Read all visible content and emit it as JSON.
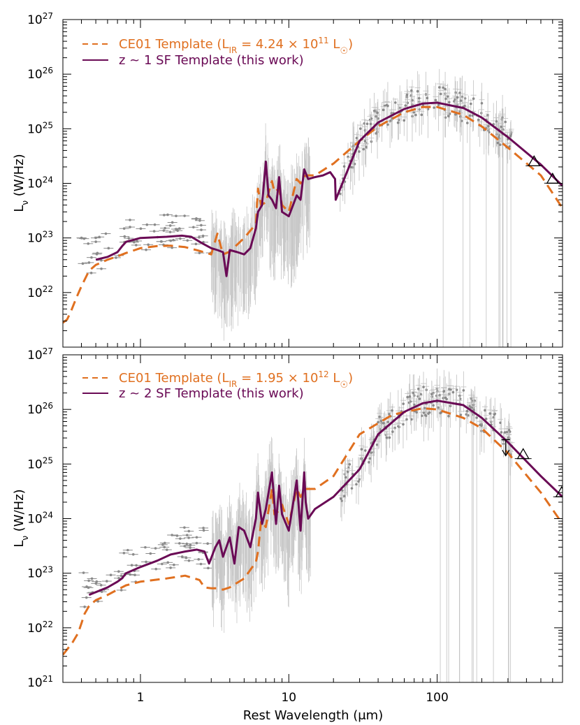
{
  "chart_data": [
    {
      "type": "line",
      "panel": "top",
      "xlabel": "",
      "ylabel": "L_ν (W/Hz)",
      "ylabel_main": "L",
      "ylabel_sub": "ν",
      "ylabel_unit": " (W/Hz)",
      "x_scale": "log",
      "y_scale": "log",
      "xlim": [
        0.3,
        700
      ],
      "ylim": [
        1e+21,
        1e+27
      ],
      "x_ticks": [
        1,
        10,
        100
      ],
      "y_ticks": [
        {
          "mantissa": "10",
          "exp": "27"
        },
        {
          "mantissa": "10",
          "exp": "26"
        },
        {
          "mantissa": "10",
          "exp": "25"
        },
        {
          "mantissa": "10",
          "exp": "24"
        },
        {
          "mantissa": "10",
          "exp": "23"
        },
        {
          "mantissa": "10",
          "exp": "22"
        }
      ],
      "legend": [
        {
          "label_pre": "CE01 Template (L",
          "label_sub": "IR",
          "label_mid": " = 4.24 × 10",
          "label_sup": "11",
          "label_post": " L",
          "label_sun": "☉",
          "label_end": ")",
          "style": "dashed",
          "color": "#e07020"
        },
        {
          "label": "z ~ 1 SF Template (this work)",
          "style": "solid",
          "color": "#6a0a55"
        }
      ],
      "series": [
        {
          "name": "CE01 Template",
          "style": "dashed",
          "color": "#e07020",
          "x": [
            0.3,
            0.32,
            0.34,
            0.37,
            0.4,
            0.45,
            0.5,
            0.6,
            0.7,
            0.8,
            1.0,
            1.3,
            1.6,
            2.0,
            2.5,
            3.0,
            3.3,
            3.6,
            4.0,
            5.0,
            6.0,
            6.2,
            6.5,
            7.0,
            7.7,
            8.0,
            8.6,
            9.0,
            10.0,
            11.3,
            12.0,
            13.0,
            15.0,
            20.0,
            30.0,
            40.0,
            60.0,
            80.0,
            100.0,
            150.0,
            200.0,
            300.0,
            500.0,
            700.0
          ],
          "y": [
            2.8e+21,
            3.2e+21,
            4.5e+21,
            8e+21,
            1.3e+22,
            2.5e+22,
            3.2e+22,
            4e+22,
            4.6e+22,
            5.3e+22,
            6.5e+22,
            7.1e+22,
            7.2e+22,
            6.8e+22,
            5.8e+22,
            5e+22,
            1.2e+23,
            5e+22,
            5.6e+22,
            1e+23,
            1.8e+23,
            8e+23,
            4e+23,
            4.5e+23,
            1.1e+24,
            7e+23,
            8e+23,
            4e+23,
            3e+23,
            1.2e+24,
            1e+24,
            1.4e+24,
            1.4e+24,
            2.3e+24,
            6e+24,
            1.1e+25,
            2e+25,
            2.5e+25,
            2.5e+25,
            1.8e+25,
            1.1e+25,
            4.5e+24,
            1.4e+24,
            3.5e+23
          ]
        },
        {
          "name": "z ~ 1 SF Template",
          "style": "solid",
          "color": "#6a0a55",
          "x": [
            0.5,
            0.6,
            0.7,
            0.75,
            0.8,
            1.0,
            1.5,
            1.9,
            2.2,
            2.6,
            3.0,
            3.3,
            3.6,
            3.8,
            4.0,
            4.5,
            5.0,
            5.5,
            6.0,
            6.2,
            6.6,
            7.0,
            7.3,
            7.7,
            8.2,
            8.6,
            9.0,
            10.0,
            11.3,
            12.0,
            12.7,
            13.5,
            15.0,
            17.0,
            19.0,
            20.5,
            20.7,
            30.0,
            40.0,
            60.0,
            80.0,
            100.0,
            150.0,
            200.0,
            300.0,
            500.0,
            700.0
          ],
          "y": [
            4e+22,
            4.5e+22,
            5.5e+22,
            7e+22,
            8.5e+22,
            1e+23,
            1.05e+23,
            1.1e+23,
            1.05e+23,
            8e+22,
            6.5e+22,
            6e+22,
            5.5e+22,
            2e+22,
            6e+22,
            5.5e+22,
            5e+22,
            6.5e+22,
            1.5e+23,
            3e+23,
            4e+23,
            2.5e+24,
            6e+23,
            5e+23,
            3.5e+23,
            1.3e+24,
            3e+23,
            2.5e+23,
            6e+23,
            5e+23,
            1.8e+24,
            1.2e+24,
            1.3e+24,
            1.4e+24,
            1.6e+24,
            1.2e+24,
            5e+23,
            6e+24,
            1.3e+25,
            2.3e+25,
            2.9e+25,
            3e+25,
            2.4e+25,
            1.6e+25,
            7e+24,
            2.2e+24,
            9e+23
          ]
        }
      ],
      "arrow_markers": [],
      "triangle_markers": [
        {
          "x": 450,
          "y": 2.5e+24
        },
        {
          "x": 600,
          "y": 1.2e+24
        }
      ]
    },
    {
      "type": "line",
      "panel": "bottom",
      "xlabel": "Rest Wavelength (μm)",
      "ylabel": "L_ν (W/Hz)",
      "ylabel_main": "L",
      "ylabel_sub": "ν",
      "ylabel_unit": " (W/Hz)",
      "x_scale": "log",
      "y_scale": "log",
      "xlim": [
        0.3,
        700
      ],
      "ylim": [
        1e+21,
        1e+27
      ],
      "x_ticks": [
        1,
        10,
        100
      ],
      "y_ticks": [
        {
          "mantissa": "10",
          "exp": "27"
        },
        {
          "mantissa": "10",
          "exp": "26"
        },
        {
          "mantissa": "10",
          "exp": "25"
        },
        {
          "mantissa": "10",
          "exp": "24"
        },
        {
          "mantissa": "10",
          "exp": "23"
        },
        {
          "mantissa": "10",
          "exp": "22"
        },
        {
          "mantissa": "10",
          "exp": "21"
        }
      ],
      "legend": [
        {
          "label_pre": "CE01 Template (L",
          "label_sub": "IR",
          "label_mid": " = 1.95 × 10",
          "label_sup": "12",
          "label_post": " L",
          "label_sun": "☉",
          "label_end": ")",
          "style": "dashed",
          "color": "#e07020"
        },
        {
          "label": "z ~ 2 SF Template (this work)",
          "style": "solid",
          "color": "#6a0a55"
        }
      ],
      "series": [
        {
          "name": "CE01 Template",
          "style": "dashed",
          "color": "#e07020",
          "x": [
            0.3,
            0.32,
            0.35,
            0.38,
            0.4,
            0.42,
            0.45,
            0.5,
            0.6,
            0.7,
            0.8,
            1.0,
            1.5,
            2.0,
            2.5,
            2.7,
            3.0,
            3.3,
            3.6,
            4.0,
            5.0,
            6.0,
            6.2,
            6.5,
            7.0,
            7.7,
            8.0,
            8.6,
            9.0,
            10.0,
            11.3,
            12.0,
            13.0,
            15.0,
            20.0,
            30.0,
            50.0,
            80.0,
            100.0,
            150.0,
            200.0,
            300.0,
            500.0,
            700.0
          ],
          "y": [
            3.2e+21,
            4e+21,
            5.5e+21,
            8e+21,
            1.2e+22,
            1.8e+22,
            2.5e+22,
            3.2e+22,
            4e+22,
            5e+22,
            6e+22,
            7e+22,
            8e+22,
            9e+22,
            7.5e+22,
            5.5e+22,
            5.3e+22,
            5.3e+22,
            5e+22,
            5.5e+22,
            8e+22,
            1.6e+23,
            2.5e+23,
            9e+23,
            7e+23,
            3.5e+24,
            1.2e+24,
            1.4e+24,
            1.8e+24,
            8e+23,
            3.5e+24,
            2.5e+24,
            3.5e+24,
            3.5e+24,
            6e+24,
            3.5e+25,
            8e+25,
            1.05e+26,
            1e+26,
            7e+25,
            4.5e+25,
            1.6e+25,
            3e+24,
            8e+23
          ]
        },
        {
          "name": "z ~ 2 SF Template",
          "style": "solid",
          "color": "#6a0a55",
          "x": [
            0.45,
            0.5,
            0.6,
            0.7,
            0.75,
            0.8,
            1.0,
            1.3,
            1.6,
            2.0,
            2.4,
            2.7,
            2.9,
            3.2,
            3.4,
            3.6,
            4.0,
            4.3,
            4.6,
            5.0,
            5.5,
            6.0,
            6.2,
            6.6,
            7.0,
            7.7,
            8.2,
            8.6,
            9.0,
            10.0,
            11.3,
            12.0,
            12.7,
            13.0,
            13.5,
            15.0,
            20.0,
            30.0,
            40.0,
            60.0,
            80.0,
            100.0,
            150.0,
            200.0,
            300.0,
            500.0,
            700.0
          ],
          "y": [
            4e+22,
            4.5e+22,
            5.5e+22,
            7e+22,
            8e+22,
            1e+23,
            1.3e+23,
            1.7e+23,
            2.2e+23,
            2.5e+23,
            2.7e+23,
            2.5e+23,
            1.5e+23,
            3e+23,
            4e+23,
            2e+23,
            4.5e+23,
            1.5e+23,
            7e+23,
            6e+23,
            3e+23,
            1e+24,
            3e+24,
            8e+23,
            1.5e+24,
            7e+24,
            8e+23,
            4e+24,
            1.2e+24,
            6e+23,
            5e+24,
            6e+23,
            7e+24,
            2e+24,
            1e+24,
            1.5e+24,
            2.5e+24,
            8e+24,
            3.5e+25,
            9e+25,
            1.3e+26,
            1.45e+26,
            1.2e+26,
            7e+25,
            2.5e+25,
            6e+24,
            2.5e+24
          ]
        }
      ],
      "arrow_markers": [
        {
          "x": 290,
          "y": 2.8e+25
        }
      ],
      "triangle_markers": [
        {
          "x": 380,
          "y": 1.5e+25
        },
        {
          "x": 690,
          "y": 3e+24
        }
      ]
    }
  ],
  "colors": {
    "ce01": "#e07020",
    "sf": "#6a0a55",
    "data": "#9a9a9a",
    "errorbar": "#c8c8c8"
  }
}
